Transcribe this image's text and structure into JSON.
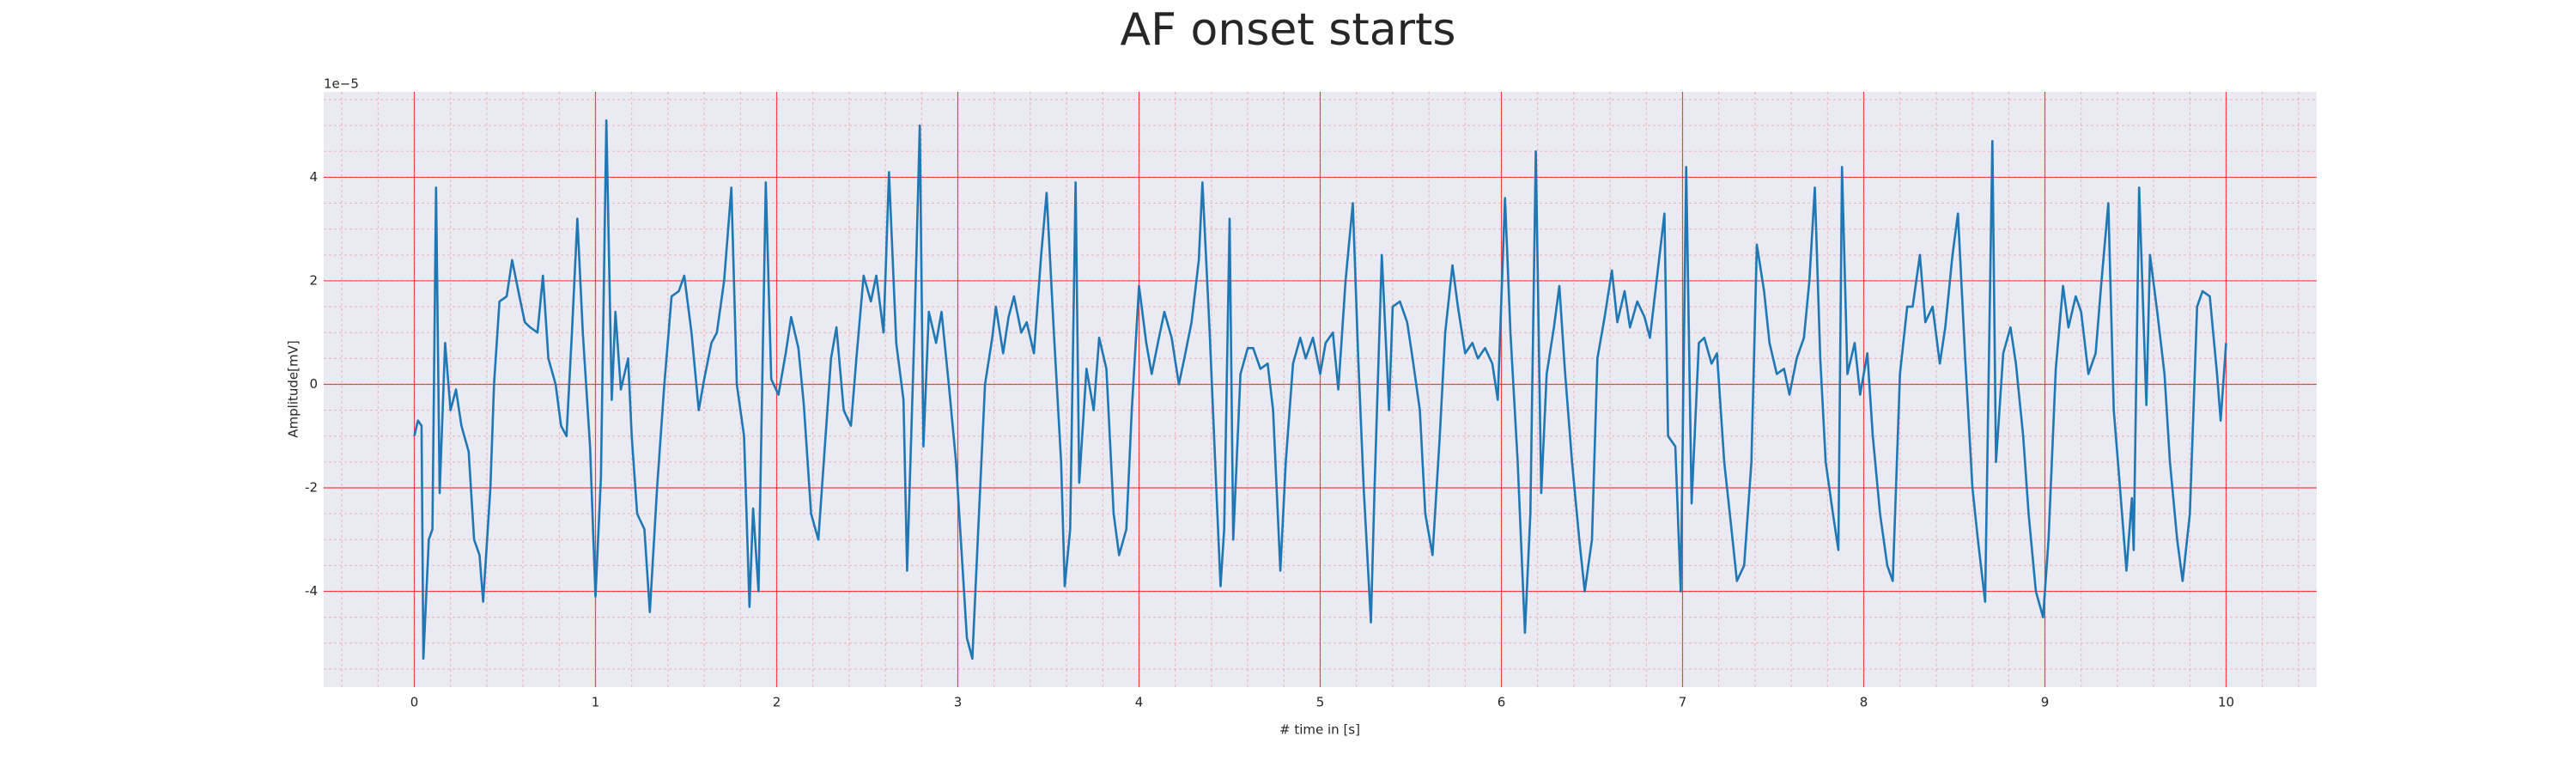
{
  "chart_data": {
    "type": "line",
    "title": "AF onset starts",
    "xlabel": "# time in [s]",
    "ylabel": "Amplitude[mV]",
    "y_offset_label": "1e−5",
    "color": "#1f77b4",
    "grid": true,
    "grid_color": "#ff0000",
    "background": "#eaeaf2",
    "xlim": [
      -0.5,
      10.5
    ],
    "xticks": [
      0,
      1,
      2,
      3,
      4,
      5,
      6,
      7,
      8,
      9,
      10
    ],
    "ylim": [
      -5.85,
      5.65
    ],
    "yticks": [
      -4,
      -2,
      0,
      2,
      4
    ],
    "x": [
      0.0,
      0.02,
      0.04,
      0.05,
      0.08,
      0.1,
      0.12,
      0.14,
      0.17,
      0.2,
      0.23,
      0.26,
      0.3,
      0.33,
      0.36,
      0.38,
      0.42,
      0.44,
      0.47,
      0.51,
      0.54,
      0.58,
      0.61,
      0.64,
      0.68,
      0.71,
      0.74,
      0.78,
      0.81,
      0.84,
      0.87,
      0.9,
      0.93,
      0.97,
      1.0,
      1.03,
      1.06,
      1.09,
      1.11,
      1.14,
      1.18,
      1.2,
      1.23,
      1.27,
      1.3,
      1.34,
      1.38,
      1.42,
      1.46,
      1.49,
      1.53,
      1.57,
      1.6,
      1.64,
      1.67,
      1.71,
      1.75,
      1.78,
      1.82,
      1.85,
      1.87,
      1.9,
      1.94,
      1.97,
      2.01,
      2.05,
      2.08,
      2.12,
      2.15,
      2.19,
      2.23,
      2.26,
      2.3,
      2.33,
      2.37,
      2.41,
      2.44,
      2.48,
      2.52,
      2.55,
      2.59,
      2.62,
      2.66,
      2.7,
      2.72,
      2.76,
      2.79,
      2.81,
      2.84,
      2.88,
      2.91,
      2.95,
      2.99,
      3.02,
      3.05,
      3.08,
      3.11,
      3.15,
      3.19,
      3.21,
      3.25,
      3.28,
      3.31,
      3.35,
      3.38,
      3.42,
      3.46,
      3.49,
      3.53,
      3.57,
      3.59,
      3.62,
      3.65,
      3.67,
      3.71,
      3.75,
      3.78,
      3.82,
      3.86,
      3.89,
      3.93,
      3.96,
      4.0,
      4.04,
      4.07,
      4.11,
      4.14,
      4.18,
      4.22,
      4.25,
      4.29,
      4.33,
      4.35,
      4.39,
      4.43,
      4.45,
      4.47,
      4.5,
      4.52,
      4.56,
      4.6,
      4.63,
      4.67,
      4.71,
      4.74,
      4.78,
      4.81,
      4.85,
      4.89,
      4.92,
      4.96,
      5.0,
      5.03,
      5.07,
      5.1,
      5.14,
      5.18,
      5.21,
      5.24,
      5.28,
      5.3,
      5.34,
      5.38,
      5.4,
      5.44,
      5.48,
      5.51,
      5.55,
      5.58,
      5.62,
      5.66,
      5.69,
      5.73,
      5.76,
      5.8,
      5.84,
      5.87,
      5.91,
      5.95,
      5.98,
      6.02,
      6.05,
      6.09,
      6.13,
      6.16,
      6.19,
      6.22,
      6.25,
      6.29,
      6.32,
      6.35,
      6.39,
      6.43,
      6.46,
      6.5,
      6.53,
      6.57,
      6.61,
      6.64,
      6.68,
      6.71,
      6.75,
      6.79,
      6.82,
      6.86,
      6.9,
      6.92,
      6.96,
      6.99,
      7.02,
      7.05,
      7.09,
      7.12,
      7.16,
      7.19,
      7.23,
      7.27,
      7.3,
      7.34,
      7.38,
      7.41,
      7.45,
      7.48,
      7.52,
      7.56,
      7.59,
      7.63,
      7.67,
      7.7,
      7.73,
      7.76,
      7.79,
      7.83,
      7.86,
      7.88,
      7.91,
      7.95,
      7.98,
      8.02,
      8.05,
      8.09,
      8.13,
      8.16,
      8.2,
      8.24,
      8.27,
      8.31,
      8.34,
      8.38,
      8.42,
      8.45,
      8.49,
      8.52,
      8.56,
      8.6,
      8.63,
      8.67,
      8.71,
      8.73,
      8.77,
      8.81,
      8.84,
      8.88,
      8.91,
      8.95,
      8.99,
      9.02,
      9.06,
      9.1,
      9.13,
      9.17,
      9.2,
      9.24,
      9.28,
      9.31,
      9.35,
      9.38,
      9.41,
      9.45,
      9.48,
      9.49,
      9.52,
      9.56,
      9.58,
      9.62,
      9.66,
      9.69,
      9.73,
      9.76,
      9.8,
      9.84,
      9.87,
      9.91,
      9.95,
      9.97,
      10.0
    ],
    "values": [
      -1.0,
      -0.7,
      -0.8,
      -5.3,
      -3.0,
      -2.8,
      3.8,
      -2.1,
      0.8,
      -0.5,
      -0.1,
      -0.8,
      -1.3,
      -3.0,
      -3.3,
      -4.2,
      -2.0,
      0,
      1.6,
      1.7,
      2.4,
      1.7,
      1.2,
      1.1,
      1.0,
      2.1,
      0.5,
      0,
      -0.8,
      -1.0,
      1,
      3.2,
      1.0,
      -1.2,
      -4.1,
      -1.8,
      5.1,
      -0.3,
      1.4,
      -0.1,
      0.5,
      -1.0,
      -2.5,
      -2.8,
      -4.4,
      -2.0,
      0,
      1.7,
      1.8,
      2.1,
      1.0,
      -0.5,
      0.1,
      0.8,
      1.0,
      2.0,
      3.8,
      0,
      -1,
      -4.3,
      -2.4,
      -4.0,
      3.9,
      0.1,
      -0.2,
      0.6,
      1.3,
      0.7,
      -0.4,
      -2.5,
      -3.0,
      -1.5,
      0.5,
      1.1,
      -0.5,
      -0.8,
      0.5,
      2.1,
      1.6,
      2.1,
      1,
      4.1,
      0.8,
      -0.3,
      -3.6,
      1.0,
      5.0,
      -1.2,
      1.4,
      0.8,
      1.4,
      0,
      -1.5,
      -3.2,
      -4.9,
      -5.3,
      -3.0,
      0,
      0.9,
      1.5,
      0.6,
      1.3,
      1.7,
      1.0,
      1.2,
      0.6,
      2.5,
      3.7,
      1.0,
      -1.5,
      -3.9,
      -2.8,
      3.9,
      -1.9,
      0.3,
      -0.5,
      0.9,
      0.3,
      -2.5,
      -3.3,
      -2.8,
      -0.5,
      1.9,
      0.8,
      0.2,
      0.9,
      1.4,
      0.9,
      0,
      0.5,
      1.2,
      2.4,
      3.9,
      1.0,
      -2.3,
      -3.9,
      -2.8,
      3.2,
      -3.0,
      0.2,
      0.7,
      0.7,
      0.3,
      0.4,
      -0.5,
      -3.6,
      -1.5,
      0.4,
      0.9,
      0.5,
      0.9,
      0.2,
      0.8,
      1.0,
      -0.1,
      2.0,
      3.5,
      0.5,
      -2.0,
      -4.6,
      -2.0,
      2.5,
      -0.5,
      1.5,
      1.6,
      1.2,
      0.5,
      -0.5,
      -2.5,
      -3.3,
      -1,
      1,
      2.3,
      1.5,
      0.6,
      0.8,
      0.5,
      0.7,
      0.4,
      -0.3,
      3.6,
      1.0,
      -1.5,
      -4.8,
      -2.5,
      4.5,
      -2.1,
      0.2,
      1.1,
      1.9,
      0.3,
      -1.5,
      -3.0,
      -4.0,
      -3.0,
      0.5,
      1.3,
      2.2,
      1.2,
      1.8,
      1.1,
      1.6,
      1.3,
      0.9,
      2.1,
      3.3,
      -1.0,
      -1.2,
      -4.0,
      4.2,
      -2.3,
      0.8,
      0.9,
      0.4,
      0.6,
      -1.5,
      -2.8,
      -3.8,
      -3.5,
      -1.5,
      2.7,
      1.8,
      0.8,
      0.2,
      0.3,
      -0.2,
      0.5,
      0.9,
      2.0,
      3.8,
      0.5,
      -1.5,
      -2.5,
      -3.2,
      4.2,
      0.2,
      0.8,
      -0.2,
      0.6,
      -1.0,
      -2.5,
      -3.5,
      -3.8,
      0.2,
      1.5,
      1.5,
      2.5,
      1.2,
      1.5,
      0.4,
      1.1,
      2.5,
      3.3,
      0.5,
      -2.0,
      -3.0,
      -4.2,
      4.7,
      -1.5,
      0.6,
      1.1,
      0.4,
      -1.0,
      -2.5,
      -4.0,
      -4.5,
      -3.0,
      0.3,
      1.9,
      1.1,
      1.7,
      1.4,
      0.2,
      0.6,
      1.9,
      3.5,
      -0.5,
      -1.8,
      -3.6,
      -2.2,
      -3.2,
      3.8,
      -0.4,
      2.5,
      1.4,
      0.2,
      -1.5,
      -3.0,
      -3.8,
      -2.5,
      1.5,
      1.8,
      1.7,
      0.2,
      -0.7,
      0.8
    ]
  }
}
